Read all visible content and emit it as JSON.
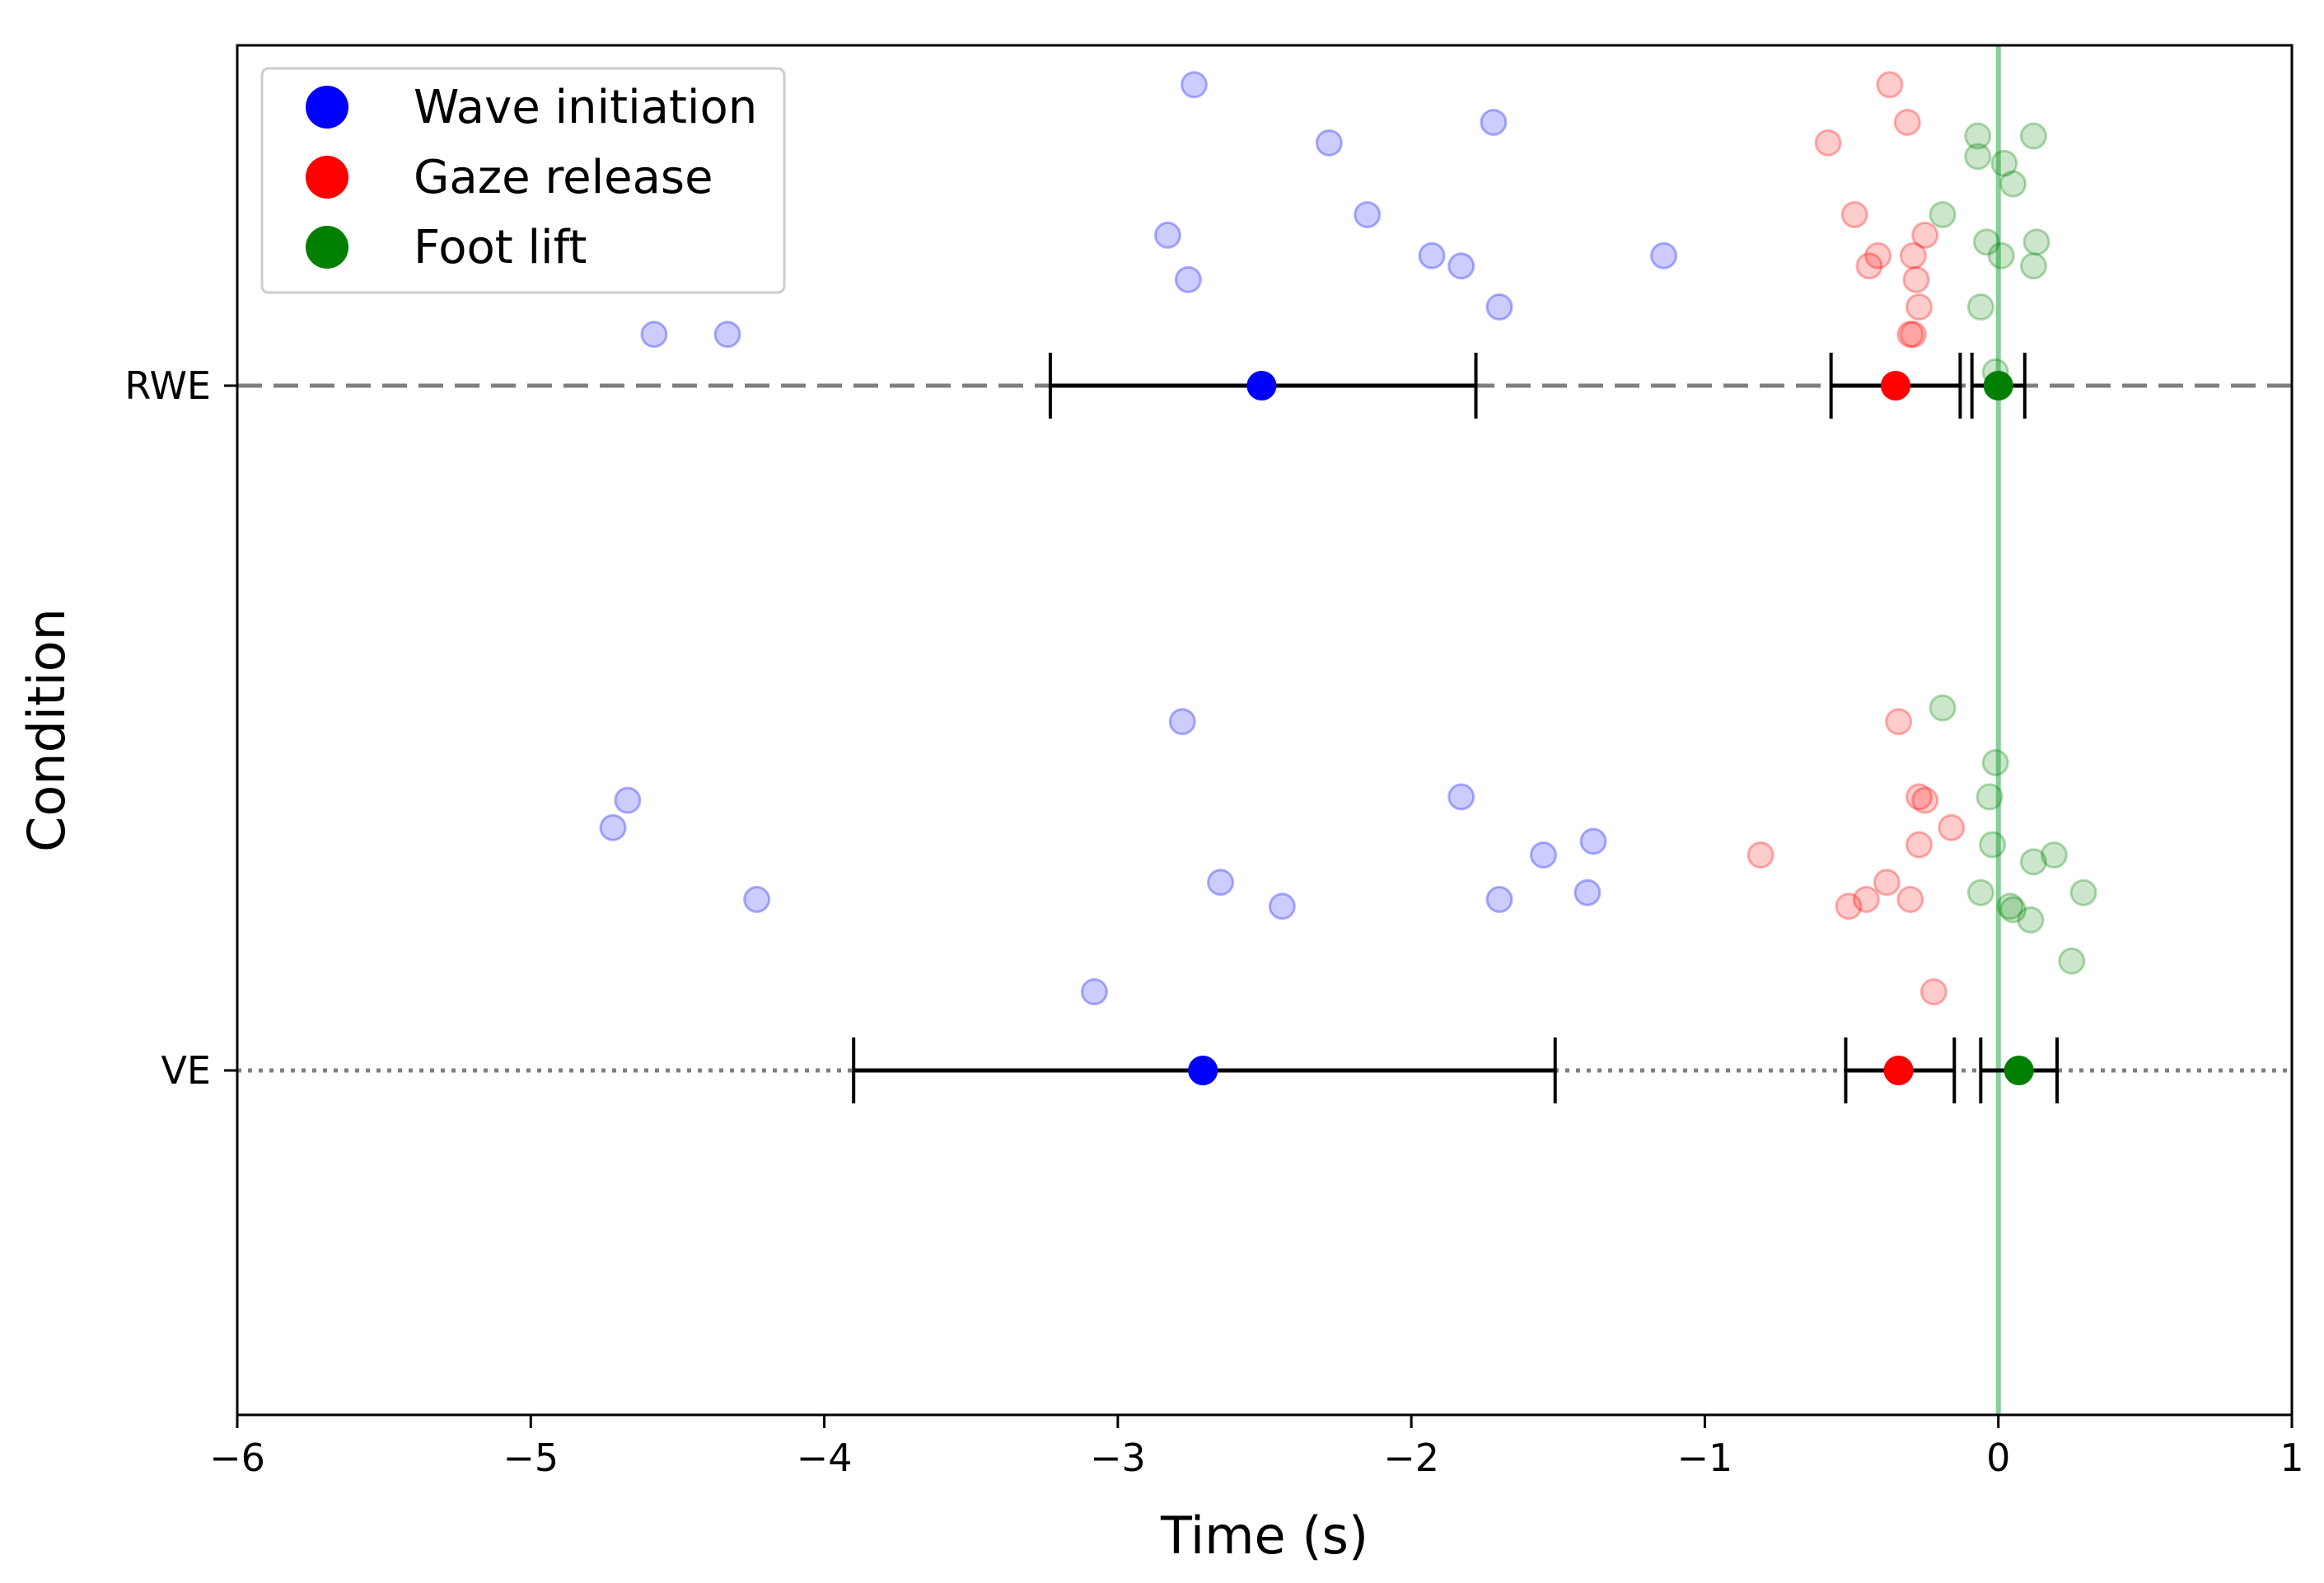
{
  "chart_data": {
    "type": "scatter",
    "title": "",
    "xlabel": "Time (s)",
    "ylabel": "Condition",
    "xlim": [
      -6,
      1
    ],
    "xticks": [
      -6,
      -5,
      -4,
      -3,
      -2,
      -1,
      0,
      1
    ],
    "xtick_labels": [
      "−6",
      "−5",
      "−4",
      "−3",
      "−2",
      "−1",
      "0",
      "1"
    ],
    "categories": [
      "RWE",
      "VE"
    ],
    "reference_line_x": 0,
    "legend": {
      "position": "upper-left",
      "entries": [
        {
          "label": "Wave initiation",
          "color": "#0000ff"
        },
        {
          "label": "Gaze release",
          "color": "#ff0000"
        },
        {
          "label": "Foot lift",
          "color": "#008000"
        }
      ]
    },
    "colors": {
      "wave": "#0000ff",
      "gaze": "#ff0000",
      "foot": "#008000",
      "reference": "#86cf9a",
      "condition_line": "#7f7f7f"
    },
    "series": [
      {
        "name": "Wave initiation",
        "color_key": "wave",
        "summary": {
          "RWE": {
            "mean": -2.51,
            "lower": -3.23,
            "upper": -1.78
          },
          "VE": {
            "mean": -2.71,
            "lower": -3.9,
            "upper": -1.51
          }
        },
        "points": {
          "RWE": [
            [
              -4.58,
              0.15
            ],
            [
              -4.33,
              0.15
            ],
            [
              -2.74,
              0.88
            ],
            [
              -2.28,
              0.71
            ],
            [
              -2.15,
              0.5
            ],
            [
              -2.83,
              0.44
            ],
            [
              -2.76,
              0.31
            ],
            [
              -1.93,
              0.38
            ],
            [
              -1.83,
              0.35
            ],
            [
              -1.72,
              0.77
            ],
            [
              -1.7,
              0.23
            ],
            [
              -1.14,
              0.38
            ]
          ],
          "VE": [
            [
              -4.72,
              0.71
            ],
            [
              -4.67,
              0.79
            ],
            [
              -4.23,
              0.5
            ],
            [
              -2.78,
              1.02
            ],
            [
              -2.65,
              0.55
            ],
            [
              -2.44,
              0.48
            ],
            [
              -3.08,
              0.23
            ],
            [
              -1.83,
              0.8
            ],
            [
              -1.7,
              0.5
            ],
            [
              -1.55,
              0.63
            ],
            [
              -1.4,
              0.52
            ],
            [
              -1.38,
              0.67
            ]
          ]
        }
      },
      {
        "name": "Gaze release",
        "color_key": "gaze",
        "summary": {
          "RWE": {
            "mean": -0.35,
            "lower": -0.57,
            "upper": -0.13
          },
          "VE": {
            "mean": -0.34,
            "lower": -0.52,
            "upper": -0.15
          }
        },
        "points": {
          "RWE": [
            [
              -0.58,
              0.71
            ],
            [
              -0.37,
              0.88
            ],
            [
              -0.31,
              0.77
            ],
            [
              -0.49,
              0.5
            ],
            [
              -0.25,
              0.44
            ],
            [
              -0.41,
              0.38
            ],
            [
              -0.44,
              0.35
            ],
            [
              -0.29,
              0.38
            ],
            [
              -0.28,
              0.31
            ],
            [
              -0.27,
              0.23
            ],
            [
              -0.29,
              0.15
            ],
            [
              -0.3,
              0.15
            ]
          ],
          "VE": [
            [
              -0.34,
              1.02
            ],
            [
              -0.27,
              0.8
            ],
            [
              -0.25,
              0.79
            ],
            [
              -0.16,
              0.71
            ],
            [
              -0.27,
              0.66
            ],
            [
              -0.81,
              0.63
            ],
            [
              -0.38,
              0.55
            ],
            [
              -0.45,
              0.5
            ],
            [
              -0.51,
              0.48
            ],
            [
              -0.3,
              0.5
            ],
            [
              -0.22,
              0.23
            ]
          ]
        }
      },
      {
        "name": "Foot lift",
        "color_key": "foot",
        "summary": {
          "RWE": {
            "mean": 0.0,
            "lower": -0.09,
            "upper": 0.09
          },
          "VE": {
            "mean": 0.07,
            "lower": -0.06,
            "upper": 0.2
          }
        },
        "points": {
          "RWE": [
            [
              -0.07,
              0.73
            ],
            [
              -0.07,
              0.67
            ],
            [
              0.02,
              0.65
            ],
            [
              0.12,
              0.73
            ],
            [
              0.05,
              0.59
            ],
            [
              -0.19,
              0.5
            ],
            [
              -0.04,
              0.42
            ],
            [
              0.01,
              0.38
            ],
            [
              0.13,
              0.42
            ],
            [
              0.12,
              0.35
            ],
            [
              -0.06,
              0.23
            ],
            [
              -0.01,
              0.04
            ]
          ],
          "VE": [
            [
              -0.19,
              1.06
            ],
            [
              -0.01,
              0.9
            ],
            [
              -0.03,
              0.8
            ],
            [
              -0.02,
              0.66
            ],
            [
              0.12,
              0.61
            ],
            [
              0.19,
              0.63
            ],
            [
              0.29,
              0.52
            ],
            [
              -0.06,
              0.52
            ],
            [
              0.04,
              0.48
            ],
            [
              0.05,
              0.47
            ],
            [
              0.11,
              0.44
            ],
            [
              0.25,
              0.32
            ]
          ]
        }
      }
    ]
  }
}
